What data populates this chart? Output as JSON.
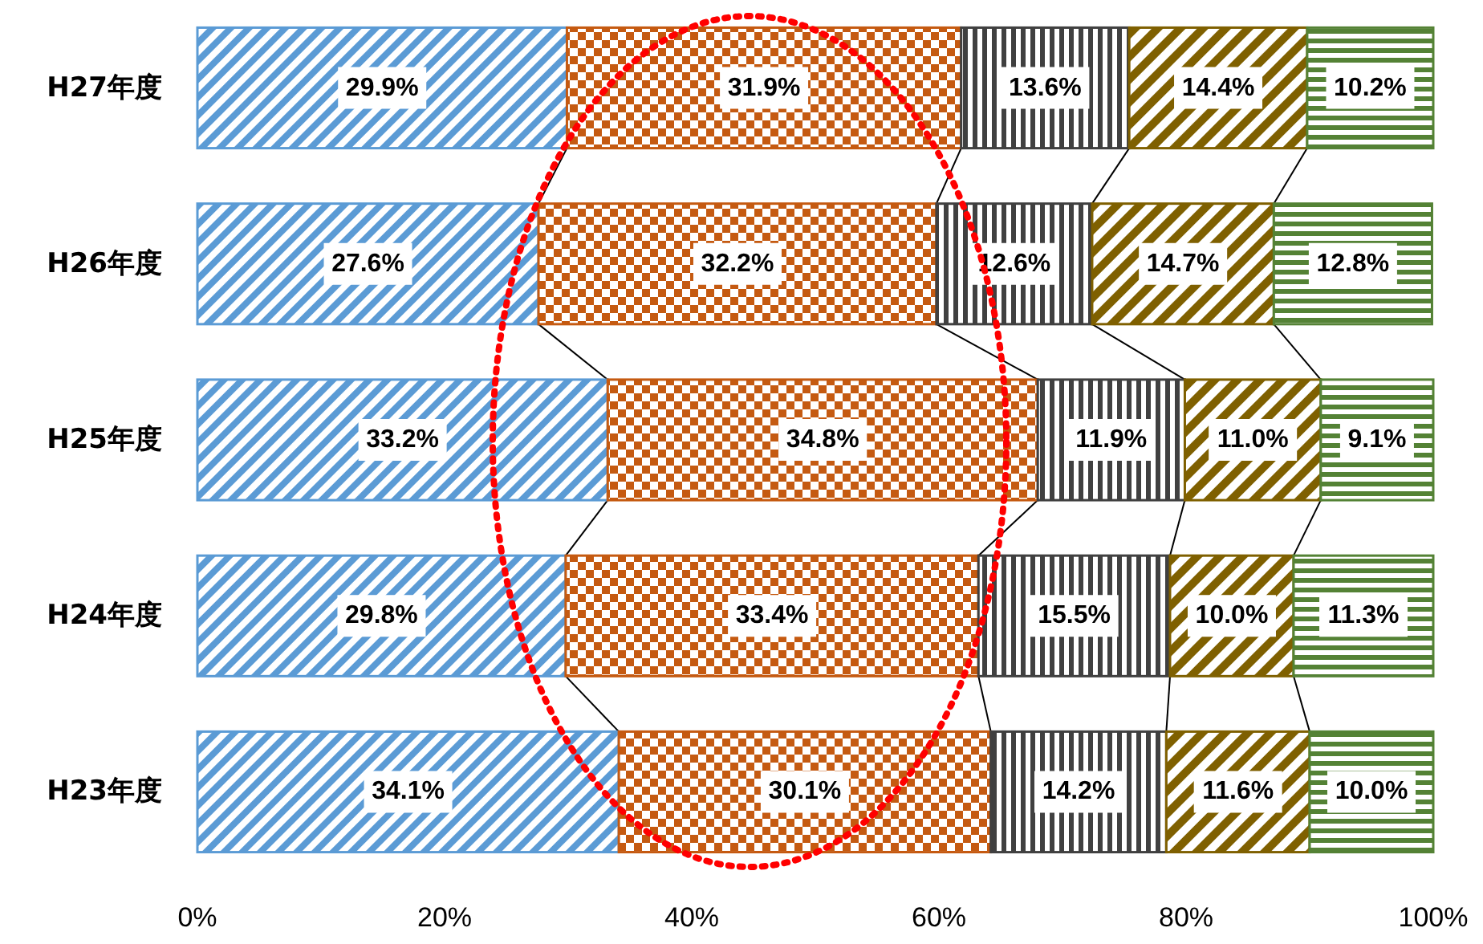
{
  "chart_data": {
    "type": "bar",
    "orientation": "horizontal",
    "stacked": true,
    "categories": [
      "H27年度",
      "H26年度",
      "H25年度",
      "H24年度",
      "H23年度"
    ],
    "series": [
      {
        "color": "#5b9bd5",
        "values": [
          29.9,
          27.6,
          33.2,
          29.8,
          34.1
        ],
        "value_labels": [
          "29.9%",
          "27.6%",
          "33.2%",
          "29.8%",
          "34.1%"
        ]
      },
      {
        "color": "#c55a11",
        "values": [
          31.9,
          32.2,
          34.8,
          33.4,
          30.1
        ],
        "value_labels": [
          "31.9%",
          "32.2%",
          "34.8%",
          "33.4%",
          "30.1%"
        ]
      },
      {
        "color": "#404040",
        "values": [
          13.6,
          12.6,
          11.9,
          15.5,
          14.2
        ],
        "value_labels": [
          "13.6%",
          "12.6%",
          "11.9%",
          "15.5%",
          "14.2%"
        ]
      },
      {
        "color": "#7f6000",
        "values": [
          14.4,
          14.7,
          11.0,
          10.0,
          11.6
        ],
        "value_labels": [
          "14.4%",
          "14.7%",
          "11.0%",
          "10.0%",
          "11.6%"
        ]
      },
      {
        "color": "#548235",
        "values": [
          10.2,
          12.8,
          9.1,
          11.3,
          10.0
        ],
        "value_labels": [
          "10.2%",
          "12.8%",
          "9.1%",
          "11.3%",
          "10.0%"
        ]
      }
    ],
    "xlim": [
      0,
      100
    ],
    "xticks": [
      {
        "value": 0,
        "label": "0%"
      },
      {
        "value": 20,
        "label": "20%"
      },
      {
        "value": 40,
        "label": "40%"
      },
      {
        "value": 60,
        "label": "60%"
      },
      {
        "value": 80,
        "label": "80%"
      },
      {
        "value": 100,
        "label": "100%"
      }
    ],
    "grid": false
  }
}
